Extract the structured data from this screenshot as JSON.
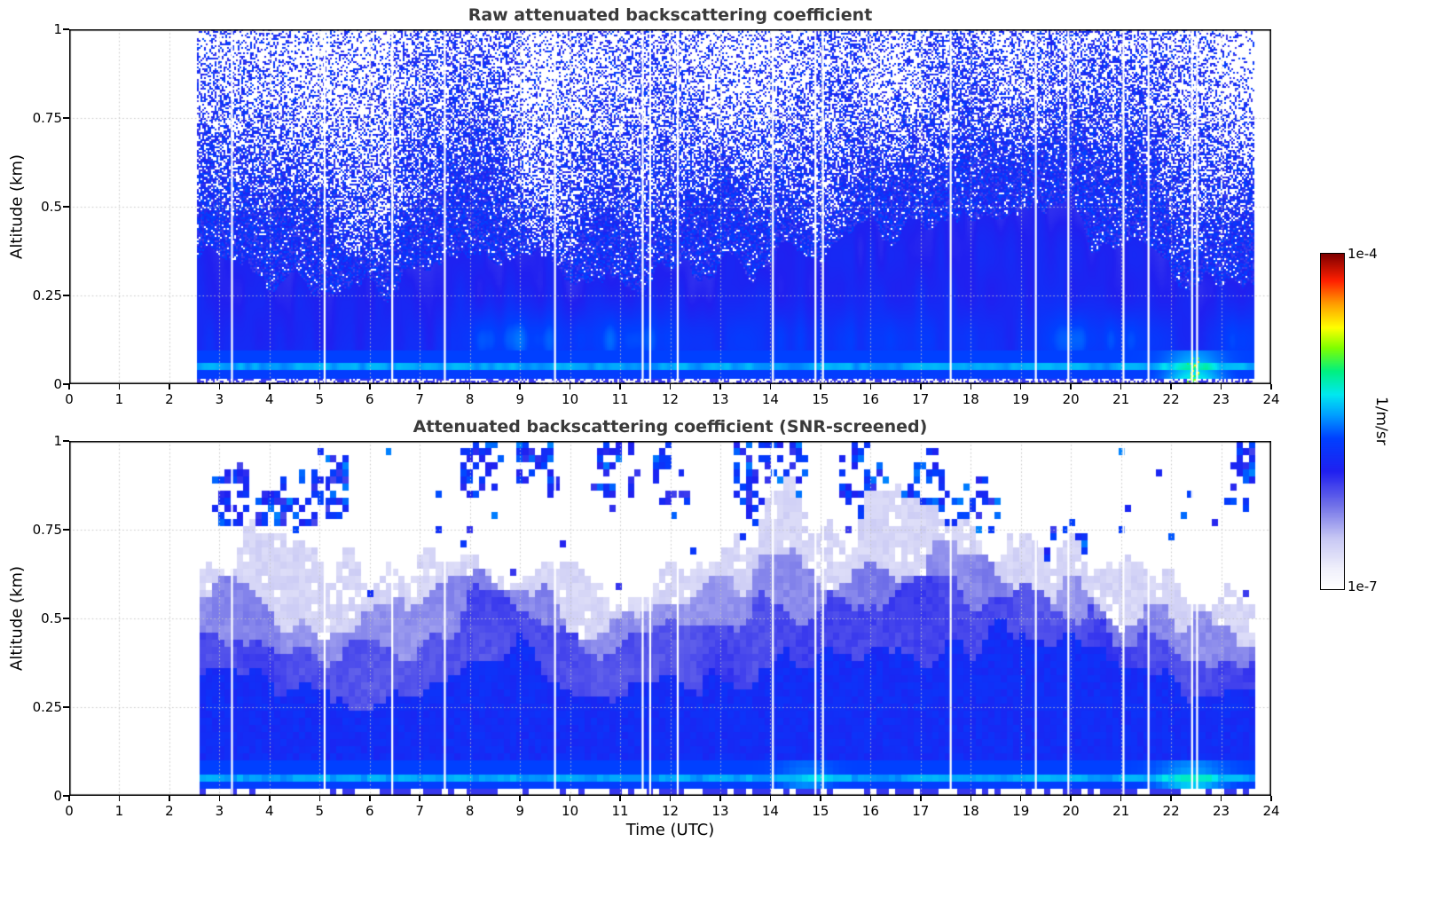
{
  "figure": {
    "xlabel": "Time (UTC)",
    "ylabel": "Altitude (km)",
    "x_tick_labels": [
      "0",
      "1",
      "2",
      "3",
      "4",
      "5",
      "6",
      "7",
      "8",
      "9",
      "10",
      "11",
      "12",
      "13",
      "14",
      "15",
      "16",
      "17",
      "18",
      "19",
      "20",
      "21",
      "22",
      "23",
      "24"
    ],
    "y_tick_labels": [
      "0",
      "0.25",
      "0.5",
      "0.75",
      "1"
    ],
    "y_tick_values": [
      0,
      0.25,
      0.5,
      0.75,
      1
    ],
    "colorbar": {
      "max": "1e-4",
      "min": "1e-7",
      "units": "1/m/sr",
      "scale": "log",
      "colormap_stops": [
        [
          0.0,
          "#ffffff"
        ],
        [
          0.06,
          "#f0f0fb"
        ],
        [
          0.15,
          "#c8c8f4"
        ],
        [
          0.25,
          "#7070e8"
        ],
        [
          0.35,
          "#2020f0"
        ],
        [
          0.45,
          "#0040ff"
        ],
        [
          0.52,
          "#00a0ff"
        ],
        [
          0.58,
          "#00e8f0"
        ],
        [
          0.65,
          "#00f080"
        ],
        [
          0.72,
          "#80ff00"
        ],
        [
          0.78,
          "#ffff00"
        ],
        [
          0.85,
          "#ffa000"
        ],
        [
          0.92,
          "#ff2000"
        ],
        [
          1.0,
          "#800000"
        ]
      ]
    }
  },
  "chart_data": [
    {
      "type": "heatmap",
      "title": "Raw attenuated backscattering coefficient",
      "ylabel": "Altitude (km)",
      "x_range_hours": [
        0,
        24
      ],
      "y_range_km": [
        0,
        1
      ],
      "value_scale": {
        "min": "1e-7",
        "max": "1e-4",
        "units": "1/m/sr",
        "scale": "log"
      },
      "data_time_extent_hours": [
        2.55,
        23.65
      ],
      "dropout_times_hours": [
        3.25,
        5.1,
        6.45,
        7.5,
        9.7,
        11.45,
        11.6,
        12.15,
        14.05,
        14.9,
        15.05,
        17.6,
        19.3,
        19.95,
        21.05,
        21.55,
        22.42,
        22.52
      ],
      "mixed_layer_top_km_by_hour": [
        0.4,
        0.4,
        0.4,
        0.42,
        0.3,
        0.26,
        0.27,
        0.31,
        0.35,
        0.34,
        0.3,
        0.29,
        0.3,
        0.32,
        0.36,
        0.4,
        0.42,
        0.42,
        0.43,
        0.45,
        0.46,
        0.4,
        0.31,
        0.27,
        0.25
      ],
      "near_ground_cyan_band_km": [
        0.04,
        0.062
      ],
      "low_level_enhancement_hours": [
        21.6,
        23.4
      ],
      "noise_character": "dense blue speckle noise above mixed layer extending to 1 km, density decreasing with altitude"
    },
    {
      "type": "heatmap",
      "title": "Attenuated backscattering coefficient (SNR-screened)",
      "ylabel": "Altitude (km)",
      "xlabel": "Time (UTC)",
      "x_range_hours": [
        0,
        24
      ],
      "y_range_km": [
        0,
        1
      ],
      "value_scale": {
        "min": "1e-7",
        "max": "1e-4",
        "units": "1/m/sr",
        "scale": "log"
      },
      "data_time_extent_hours": [
        2.55,
        23.65
      ],
      "dropout_times_hours": [
        3.25,
        5.1,
        6.45,
        7.5,
        9.7,
        11.45,
        11.6,
        12.15,
        14.05,
        14.9,
        15.05,
        17.6,
        19.3,
        19.95,
        21.05,
        21.55,
        22.42,
        22.52
      ],
      "layer_tops_km_by_hour": {
        "strong_blue_core": [
          0.38,
          0.38,
          0.38,
          0.4,
          0.3,
          0.28,
          0.25,
          0.28,
          0.35,
          0.4,
          0.3,
          0.28,
          0.3,
          0.32,
          0.35,
          0.4,
          0.42,
          0.4,
          0.42,
          0.45,
          0.42,
          0.35,
          0.3,
          0.3,
          0.3
        ],
        "medium_blue": [
          0.5,
          0.5,
          0.5,
          0.5,
          0.42,
          0.4,
          0.38,
          0.4,
          0.55,
          0.52,
          0.42,
          0.42,
          0.45,
          0.45,
          0.5,
          0.52,
          0.55,
          0.55,
          0.55,
          0.55,
          0.52,
          0.45,
          0.42,
          0.4,
          0.4
        ],
        "light_blue": [
          0.56,
          0.56,
          0.56,
          0.55,
          0.52,
          0.5,
          0.48,
          0.55,
          0.62,
          0.58,
          0.5,
          0.5,
          0.52,
          0.55,
          0.65,
          0.6,
          0.65,
          0.68,
          0.65,
          0.62,
          0.6,
          0.55,
          0.5,
          0.48,
          0.48
        ],
        "pale_lavender": [
          0.65,
          0.65,
          0.65,
          0.65,
          0.72,
          0.7,
          0.62,
          0.65,
          0.7,
          0.65,
          0.6,
          0.58,
          0.62,
          0.68,
          0.85,
          0.78,
          0.8,
          0.8,
          0.75,
          0.7,
          0.68,
          0.62,
          0.58,
          0.55,
          0.55
        ]
      },
      "elevated_scatter_clusters": [
        {
          "t": 3.3,
          "h": 0.85
        },
        {
          "t": 3.9,
          "h": 0.8
        },
        {
          "t": 4.6,
          "h": 0.83
        },
        {
          "t": 5.2,
          "h": 0.88
        },
        {
          "t": 8.2,
          "h": 0.93
        },
        {
          "t": 9.4,
          "h": 0.93
        },
        {
          "t": 10.9,
          "h": 0.9
        },
        {
          "t": 12.0,
          "h": 0.88
        },
        {
          "t": 13.6,
          "h": 0.92
        },
        {
          "t": 14.0,
          "h": 0.82
        },
        {
          "t": 14.3,
          "h": 0.92
        },
        {
          "t": 15.8,
          "h": 0.9
        },
        {
          "t": 16.3,
          "h": 0.8
        },
        {
          "t": 17.1,
          "h": 0.85
        },
        {
          "t": 17.6,
          "h": 0.74
        },
        {
          "t": 18.2,
          "h": 0.8
        },
        {
          "t": 19.9,
          "h": 0.68
        },
        {
          "t": 23.4,
          "h": 0.9
        }
      ],
      "near_ground_cyan_band_km": [
        0.03,
        0.062
      ],
      "low_level_enhancement_hours": [
        21.6,
        23.4
      ]
    }
  ]
}
